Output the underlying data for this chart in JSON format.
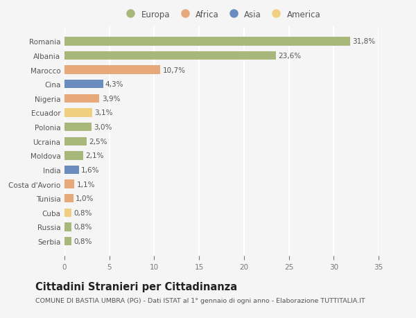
{
  "countries": [
    "Romania",
    "Albania",
    "Marocco",
    "Cina",
    "Nigeria",
    "Ecuador",
    "Polonia",
    "Ucraina",
    "Moldova",
    "India",
    "Costa d'Avorio",
    "Tunisia",
    "Cuba",
    "Russia",
    "Serbia"
  ],
  "values": [
    31.8,
    23.6,
    10.7,
    4.3,
    3.9,
    3.1,
    3.0,
    2.5,
    2.1,
    1.6,
    1.1,
    1.0,
    0.8,
    0.8,
    0.8
  ],
  "labels": [
    "31,8%",
    "23,6%",
    "10,7%",
    "4,3%",
    "3,9%",
    "3,1%",
    "3,0%",
    "2,5%",
    "2,1%",
    "1,6%",
    "1,1%",
    "1,0%",
    "0,8%",
    "0,8%",
    "0,8%"
  ],
  "colors": [
    "#a8b87a",
    "#a8b87a",
    "#e8a97a",
    "#6b8cbf",
    "#e8a97a",
    "#f0d080",
    "#a8b87a",
    "#a8b87a",
    "#a8b87a",
    "#6b8cbf",
    "#e8a97a",
    "#e8a97a",
    "#f0d080",
    "#a8b87a",
    "#a8b87a"
  ],
  "legend_labels": [
    "Europa",
    "Africa",
    "Asia",
    "America"
  ],
  "legend_colors": [
    "#a8b87a",
    "#e8a97a",
    "#6b8cbf",
    "#f0d080"
  ],
  "xlim": [
    0,
    35
  ],
  "xticks": [
    0,
    5,
    10,
    15,
    20,
    25,
    30,
    35
  ],
  "title": "Cittadini Stranieri per Cittadinanza",
  "subtitle": "COMUNE DI BASTIA UMBRA (PG) - Dati ISTAT al 1° gennaio di ogni anno - Elaborazione TUTTITALIA.IT",
  "bg_color": "#f5f5f5",
  "grid_color": "#ffffff",
  "bar_height": 0.6,
  "label_fontsize": 7.5,
  "tick_fontsize": 7.5,
  "legend_fontsize": 8.5,
  "title_fontsize": 10.5,
  "subtitle_fontsize": 6.8
}
